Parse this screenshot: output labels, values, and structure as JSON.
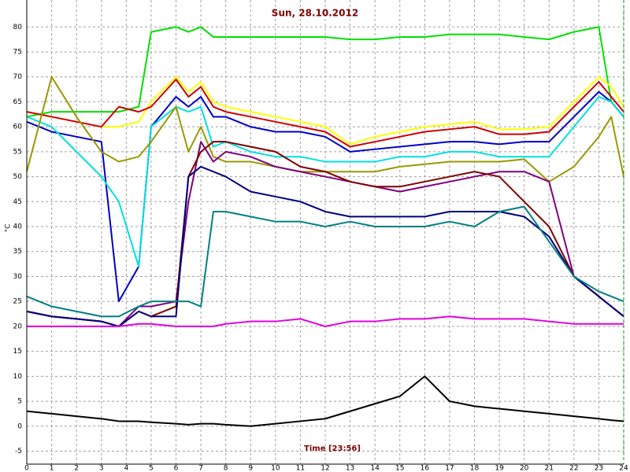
{
  "chart_data": {
    "type": "line",
    "title": "Sun, 28.10.2012",
    "x_label": "Time [23:56]",
    "y_label": "°C",
    "x": [
      0,
      1,
      2,
      3,
      3.7,
      4.5,
      5,
      6,
      6.5,
      7,
      7.5,
      8,
      9,
      10,
      11,
      12,
      13,
      14,
      15,
      16,
      17,
      18,
      19,
      20,
      21,
      22,
      23,
      23.5,
      24
    ],
    "series": [
      {
        "color": "#00e000",
        "values": [
          62,
          63,
          63,
          63,
          63,
          64,
          79,
          80,
          79,
          80,
          78,
          78,
          78,
          78,
          78,
          78,
          77.5,
          77.5,
          78,
          78,
          78.5,
          78.5,
          78.5,
          78,
          77.5,
          79,
          80,
          65,
          62
        ]
      },
      {
        "color": "#ffff00",
        "values": [
          63,
          62,
          61,
          60,
          60,
          61,
          65,
          70,
          67,
          69,
          65,
          64,
          63,
          62,
          61,
          60,
          56.5,
          58,
          59,
          60,
          60.5,
          61,
          59.5,
          59.5,
          60,
          65,
          70,
          68,
          64
        ]
      },
      {
        "color": "#cc0000",
        "values": [
          63,
          62,
          61,
          60,
          64,
          63,
          64,
          69.5,
          66,
          68,
          64,
          63,
          62,
          61,
          60,
          59,
          56,
          57,
          58,
          59,
          59.5,
          60,
          58.5,
          58.5,
          59,
          64,
          69,
          66,
          63
        ]
      },
      {
        "color": "#0000cc",
        "values": [
          61,
          59,
          58,
          57,
          25,
          32,
          60,
          66,
          64,
          66,
          62,
          62,
          60,
          59,
          59,
          58,
          55,
          55.5,
          56,
          56.5,
          57,
          57,
          56.5,
          57,
          57,
          62,
          67,
          65,
          62
        ]
      },
      {
        "color": "#00e0e0",
        "values": [
          62,
          60,
          55,
          50,
          45,
          32,
          60,
          64,
          63,
          64,
          56,
          57,
          55,
          54,
          54,
          53,
          53,
          53,
          54,
          54,
          55,
          55,
          54,
          54,
          54,
          60,
          66,
          65,
          62
        ]
      },
      {
        "color": "#999900",
        "values": [
          51,
          70,
          62,
          55,
          53,
          54,
          57,
          64,
          55,
          60,
          54,
          53,
          53,
          52,
          51,
          51,
          51,
          51,
          52,
          52.5,
          53,
          53,
          53,
          53.5,
          49,
          52,
          58,
          62,
          50
        ]
      },
      {
        "color": "#800080",
        "values": [
          23,
          22,
          21.5,
          21,
          20,
          24,
          24,
          25,
          45,
          57,
          53,
          55,
          54,
          52,
          51,
          50,
          49,
          48,
          47,
          48,
          49,
          50,
          51,
          51,
          49,
          30,
          26,
          24,
          22
        ]
      },
      {
        "color": "#800000",
        "values": [
          23,
          22,
          21.5,
          21,
          20,
          23,
          22,
          24,
          50,
          55,
          57,
          57,
          56,
          55,
          52,
          51,
          49,
          48,
          48,
          49,
          50,
          51,
          50,
          45,
          40,
          30,
          26,
          24,
          22
        ]
      },
      {
        "color": "#000080",
        "values": [
          23,
          22,
          21.5,
          21,
          20,
          23,
          22,
          22,
          50,
          52,
          51,
          50,
          47,
          46,
          45,
          43,
          42,
          42,
          42,
          42,
          43,
          43,
          43,
          42,
          38,
          30,
          26,
          24,
          22
        ]
      },
      {
        "color": "#008080",
        "values": [
          26,
          24,
          23,
          22,
          22,
          24,
          25,
          25,
          25,
          24,
          43,
          43,
          42,
          41,
          41,
          40,
          41,
          40,
          40,
          40,
          41,
          40,
          43,
          44,
          37,
          30,
          27,
          26,
          25
        ]
      },
      {
        "color": "#e000e0",
        "values": [
          20,
          20,
          20,
          20,
          20,
          20.5,
          20.5,
          20,
          20,
          20,
          20,
          20.5,
          21,
          21,
          21.5,
          20,
          21,
          21,
          21.5,
          21.5,
          22,
          21.5,
          21.5,
          21.5,
          21,
          20.5,
          20.5,
          20.5,
          20.5
        ]
      },
      {
        "color": "#000000",
        "values": [
          3,
          2.5,
          2,
          1.5,
          1,
          1,
          0.8,
          0.5,
          0.3,
          0.5,
          0.5,
          0.3,
          0,
          0.5,
          1,
          1.5,
          3,
          4.5,
          6,
          10,
          5,
          4,
          3.5,
          3,
          2.5,
          2,
          1.5,
          1.2,
          1
        ]
      }
    ],
    "xlim": [
      0,
      24
    ],
    "xticks": [
      0,
      1,
      2,
      3,
      4,
      5,
      6,
      7,
      8,
      9,
      10,
      11,
      12,
      13,
      14,
      15,
      16,
      17,
      18,
      19,
      20,
      21,
      22,
      23,
      24
    ],
    "ylim": [
      -7.6,
      85.4
    ],
    "yticks": [
      -5,
      0,
      5,
      10,
      15,
      20,
      25,
      30,
      35,
      40,
      45,
      50,
      55,
      60,
      65,
      70,
      75,
      80
    ],
    "grid": true
  }
}
